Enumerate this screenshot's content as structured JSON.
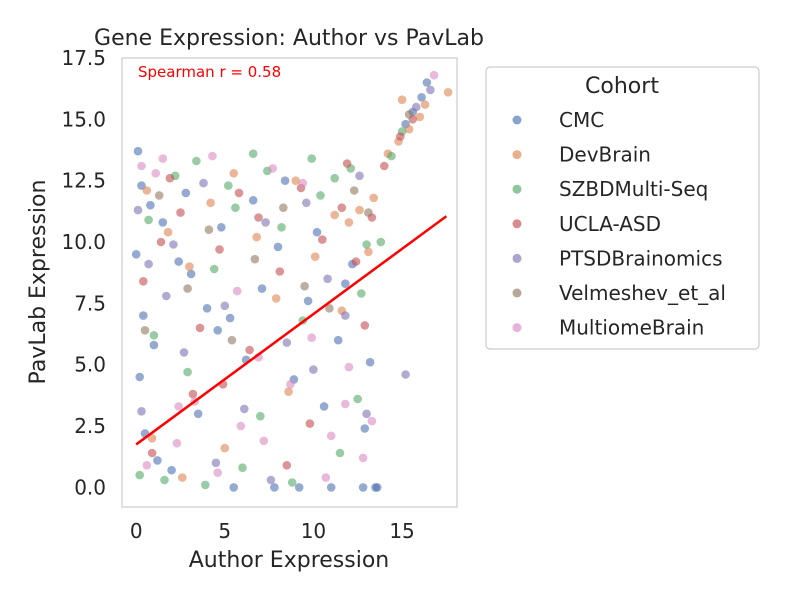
{
  "chart_data": {
    "type": "scatter",
    "title": "Gene Expression: Author vs PavLab",
    "xlabel": "Author Expression",
    "ylabel": "PavLab Expression",
    "xlim": [
      -0.8,
      18.1
    ],
    "ylim": [
      -0.8,
      17.5
    ],
    "xticks": [
      0,
      5,
      10,
      15
    ],
    "xtick_labels": [
      "0",
      "5",
      "10",
      "15"
    ],
    "yticks": [
      0.0,
      2.5,
      5.0,
      7.5,
      10.0,
      12.5,
      15.0,
      17.5
    ],
    "ytick_labels": [
      "0.0",
      "2.5",
      "5.0",
      "7.5",
      "10.0",
      "12.5",
      "15.0",
      "17.5"
    ],
    "grid": false,
    "legend": {
      "title": "Cohort",
      "placement": "outside-right"
    },
    "annotation": {
      "text": "Spearman r = 0.58",
      "color": "#ff0000"
    },
    "regression_line": {
      "x": [
        0.0,
        17.5
      ],
      "y": [
        1.75,
        11.05
      ],
      "color": "#ff0000"
    },
    "series": [
      {
        "name": "CMC",
        "color": "#4c72b0",
        "x": [
          0.1,
          0.3,
          0.8,
          1.5,
          2.4,
          3.1,
          4.0,
          4.6,
          5.3,
          6.2,
          7.1,
          8.0,
          8.9,
          9.7,
          10.6,
          11.4,
          12.2,
          12.9,
          13.5,
          13.6,
          0.2,
          0.5,
          1.2,
          2.0,
          3.5,
          5.5,
          7.8,
          9.2,
          11.0,
          12.8,
          0.0,
          0.4,
          1.0,
          2.8,
          4.8,
          6.6,
          8.4,
          10.2,
          11.8,
          13.2,
          15.2,
          15.6,
          16.1,
          16.4
        ],
        "y": [
          13.7,
          12.3,
          11.5,
          10.8,
          9.2,
          8.7,
          7.3,
          6.4,
          6.9,
          5.2,
          8.1,
          9.8,
          4.4,
          7.6,
          3.3,
          6.0,
          9.1,
          2.4,
          0.0,
          0.0,
          4.5,
          2.2,
          1.1,
          0.7,
          3.0,
          0.0,
          0.0,
          0.0,
          0.0,
          0.0,
          9.5,
          7.0,
          5.8,
          12.0,
          10.6,
          11.7,
          12.5,
          10.4,
          8.3,
          5.1,
          14.8,
          15.3,
          15.9,
          16.5
        ]
      },
      {
        "name": "DevBrain",
        "color": "#dd8452",
        "x": [
          0.6,
          1.8,
          3.0,
          4.2,
          5.5,
          6.8,
          7.9,
          9.0,
          10.1,
          11.2,
          12.0,
          12.6,
          13.1,
          0.9,
          2.6,
          5.0,
          8.6,
          11.6,
          13.4,
          14.2,
          14.8,
          15.4,
          16.0,
          17.6,
          15.0,
          16.3
        ],
        "y": [
          12.1,
          10.4,
          9.0,
          11.6,
          12.8,
          10.2,
          7.7,
          12.5,
          9.4,
          11.1,
          10.8,
          11.3,
          9.6,
          2.0,
          0.4,
          1.6,
          3.9,
          7.2,
          11.8,
          13.6,
          14.1,
          14.6,
          15.1,
          16.1,
          15.8,
          15.6
        ]
      },
      {
        "name": "SZBDMulti-Seq",
        "color": "#55a868",
        "x": [
          0.2,
          1.0,
          2.2,
          3.4,
          4.4,
          5.6,
          6.6,
          7.4,
          8.2,
          9.4,
          10.4,
          11.2,
          12.1,
          13.0,
          13.8,
          1.6,
          3.9,
          6.0,
          8.8,
          11.5,
          12.5,
          0.7,
          2.9,
          5.2,
          7.0,
          9.9,
          12.7,
          14.4,
          15.0
        ],
        "y": [
          0.5,
          6.2,
          12.7,
          13.3,
          8.9,
          11.4,
          13.6,
          12.9,
          10.6,
          6.8,
          11.9,
          12.6,
          13.0,
          9.9,
          10.0,
          0.3,
          0.1,
          0.8,
          0.2,
          1.4,
          3.6,
          10.9,
          4.7,
          12.3,
          2.9,
          13.4,
          7.9,
          13.5,
          14.5
        ]
      },
      {
        "name": "UCLA-ASD",
        "color": "#c44e52",
        "x": [
          0.4,
          1.4,
          2.5,
          3.6,
          4.7,
          5.8,
          6.9,
          8.1,
          9.3,
          10.5,
          11.6,
          12.4,
          13.3,
          0.9,
          3.2,
          6.4,
          9.8,
          12.9,
          14.0,
          14.9,
          15.6,
          1.9,
          4.9,
          8.5,
          11.9
        ],
        "y": [
          8.4,
          10.0,
          11.2,
          6.5,
          9.7,
          12.0,
          11.0,
          8.8,
          12.2,
          10.1,
          11.4,
          9.2,
          11.0,
          1.4,
          3.8,
          5.6,
          2.6,
          6.6,
          13.1,
          14.3,
          15.0,
          12.6,
          4.2,
          0.9,
          13.2
        ]
      },
      {
        "name": "PTSDBrainomics",
        "color": "#8172b3",
        "x": [
          0.1,
          0.7,
          1.7,
          2.7,
          3.8,
          5.0,
          6.1,
          7.3,
          8.5,
          9.6,
          10.8,
          11.8,
          12.6,
          0.3,
          2.1,
          4.5,
          7.6,
          10.0,
          13.0,
          15.2,
          15.8,
          16.6
        ],
        "y": [
          11.3,
          9.1,
          7.8,
          5.5,
          12.4,
          7.4,
          3.2,
          10.8,
          5.9,
          11.6,
          8.5,
          7.0,
          12.7,
          3.1,
          9.9,
          1.0,
          0.3,
          4.8,
          3.0,
          4.6,
          15.5,
          16.2
        ]
      },
      {
        "name": "Velmeshev_et_al",
        "color": "#937860",
        "x": [
          0.5,
          1.3,
          2.9,
          4.1,
          5.4,
          6.7,
          8.3,
          9.5,
          10.9,
          12.3,
          13.1,
          15.4
        ],
        "y": [
          6.4,
          11.9,
          8.1,
          10.5,
          6.0,
          9.3,
          11.4,
          8.2,
          7.3,
          12.1,
          11.2,
          15.2
        ]
      },
      {
        "name": "MultiomeBrain",
        "color": "#da8bc3",
        "x": [
          0.3,
          1.1,
          2.3,
          3.3,
          4.3,
          5.7,
          6.9,
          7.7,
          8.7,
          9.9,
          11.0,
          12.0,
          12.8,
          13.3,
          0.6,
          2.4,
          4.6,
          7.2,
          9.4,
          11.8,
          16.8,
          1.5,
          5.9,
          10.7
        ],
        "y": [
          13.1,
          12.8,
          1.8,
          3.5,
          13.5,
          8.0,
          5.3,
          13.0,
          4.2,
          6.1,
          2.1,
          4.9,
          1.2,
          2.7,
          0.9,
          3.3,
          0.6,
          1.9,
          12.4,
          3.4,
          16.8,
          13.4,
          2.5,
          0.4
        ]
      }
    ]
  }
}
